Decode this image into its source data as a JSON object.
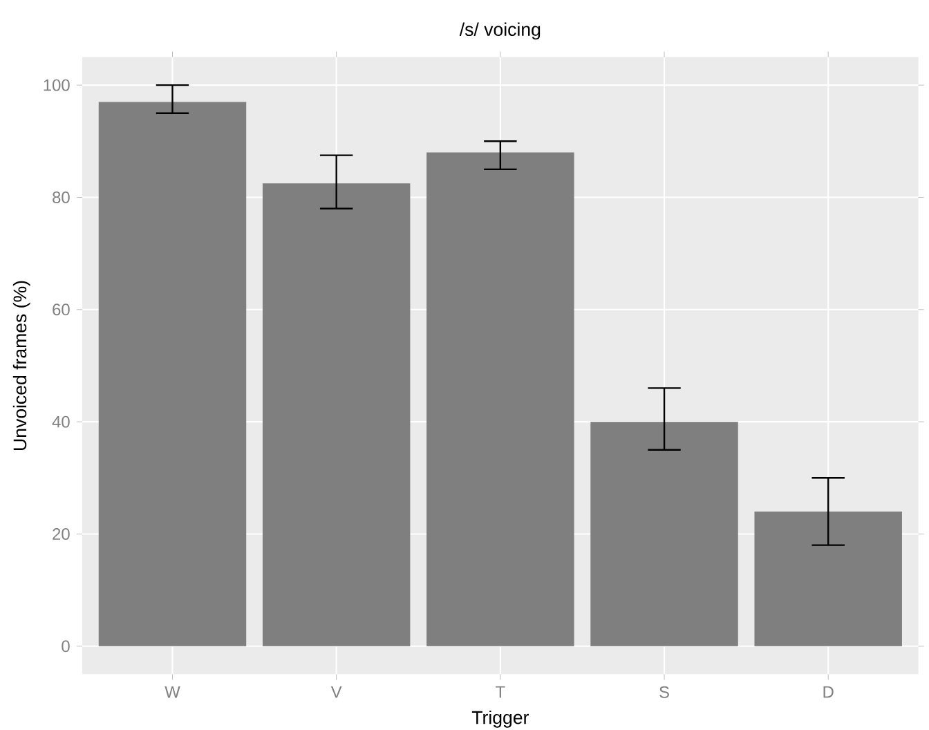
{
  "chart_data": {
    "type": "bar",
    "title": "/s/ voicing",
    "xlabel": "Trigger",
    "ylabel": "Unvoiced frames (%)",
    "categories": [
      "W",
      "V",
      "T",
      "S",
      "D"
    ],
    "values": [
      97,
      82.5,
      88,
      40,
      24
    ],
    "errors": [
      [
        95,
        100
      ],
      [
        78,
        87.5
      ],
      [
        85,
        90
      ],
      [
        35,
        46
      ],
      [
        18,
        30
      ]
    ],
    "color": "#7f7f7f",
    "ylim": [
      -5,
      105
    ],
    "yticks": [
      0,
      20,
      40,
      60,
      80,
      100
    ],
    "grid": true
  }
}
